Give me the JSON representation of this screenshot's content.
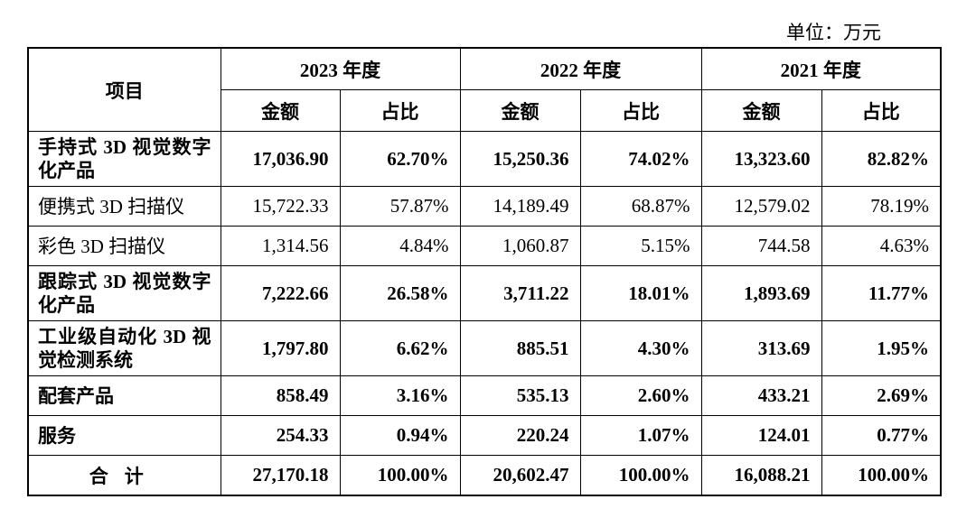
{
  "unit": "单位：万元",
  "table": {
    "header": {
      "item": "项目",
      "years": [
        "2023 年度",
        "2022 年度",
        "2021 年度"
      ],
      "columns": [
        "金额",
        "占比",
        "金额",
        "占比",
        "金额",
        "占比"
      ]
    },
    "rows": [
      [
        "手持式 3D 视觉数字化产品",
        "17,036.90",
        "62.70%",
        "15,250.36",
        "74.02%",
        "13,323.60",
        "82.82%"
      ],
      [
        "便携式 3D 扫描仪",
        "15,722.33",
        "57.87%",
        "14,189.49",
        "68.87%",
        "12,579.02",
        "78.19%"
      ],
      [
        "彩色 3D 扫描仪",
        "1,314.56",
        "4.84%",
        "1,060.87",
        "5.15%",
        "744.58",
        "4.63%"
      ],
      [
        "跟踪式 3D 视觉数字化产品",
        "7,222.66",
        "26.58%",
        "3,711.22",
        "18.01%",
        "1,893.69",
        "11.77%"
      ],
      [
        "工业级自动化 3D 视觉检测系统",
        "1,797.80",
        "6.62%",
        "885.51",
        "4.30%",
        "313.69",
        "1.95%"
      ],
      [
        "配套产品",
        "858.49",
        "3.16%",
        "535.13",
        "2.60%",
        "433.21",
        "2.69%"
      ],
      [
        "服务",
        "254.33",
        "0.94%",
        "220.24",
        "1.07%",
        "124.01",
        "0.77%"
      ],
      [
        "合计",
        "27,170.18",
        "100.00%",
        "20,602.47",
        "100.00%",
        "16,088.21",
        "100.00%"
      ]
    ]
  }
}
